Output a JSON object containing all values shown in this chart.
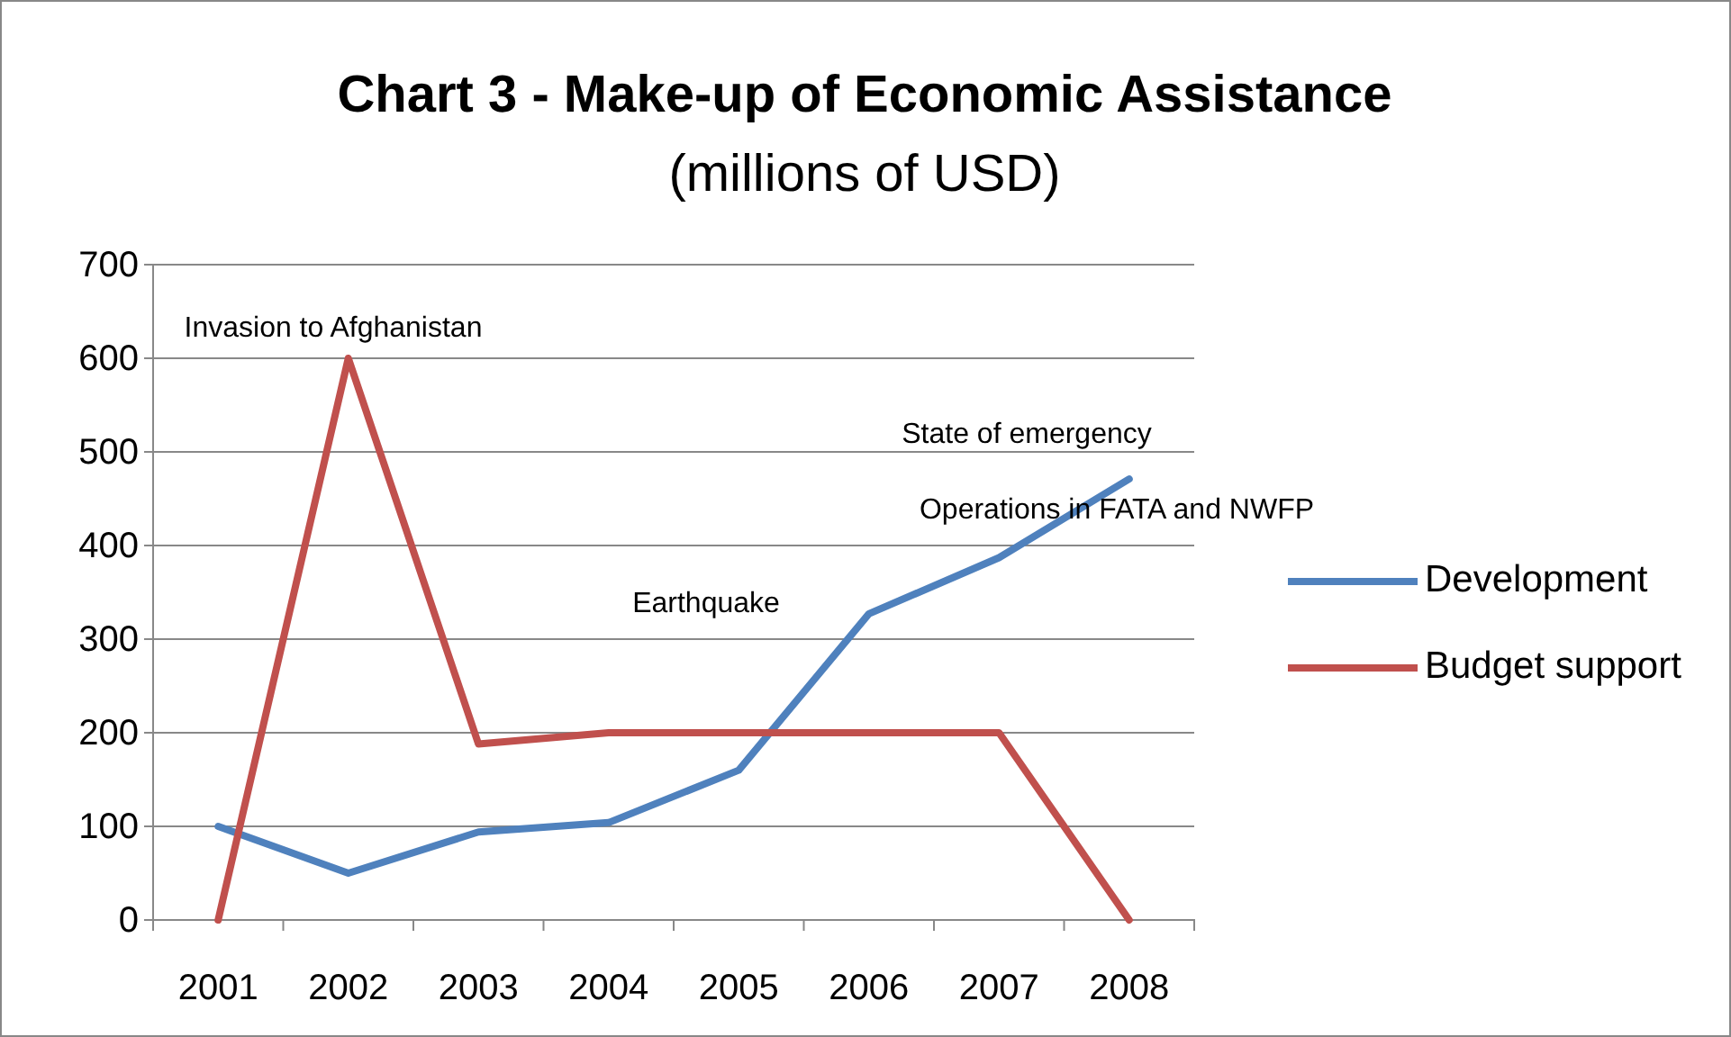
{
  "chart_data": {
    "type": "line",
    "title": "Chart 3 - Make-up of Economic Assistance",
    "subtitle": "(millions of USD)",
    "categories": [
      "2001",
      "2002",
      "2003",
      "2004",
      "2005",
      "2006",
      "2007",
      "2008"
    ],
    "series": [
      {
        "name": "Development",
        "color": "#4f81bd",
        "values": [
          100,
          50,
          94,
          104,
          160,
          327,
          387,
          471
        ]
      },
      {
        "name": "Budget support",
        "color": "#c0504d",
        "values": [
          0,
          600,
          188,
          200,
          200,
          200,
          200,
          0
        ]
      }
    ],
    "ylim": [
      0,
      700
    ],
    "yticks": [
      0,
      100,
      200,
      300,
      400,
      500,
      600,
      700
    ],
    "grid": "y",
    "legend": "right",
    "marker": "none",
    "line_style": "solid",
    "annotations": [
      "Invasion to Afghanistan",
      "State of emergency",
      "Operations in FATA and NWFP",
      "Earthquake"
    ]
  }
}
